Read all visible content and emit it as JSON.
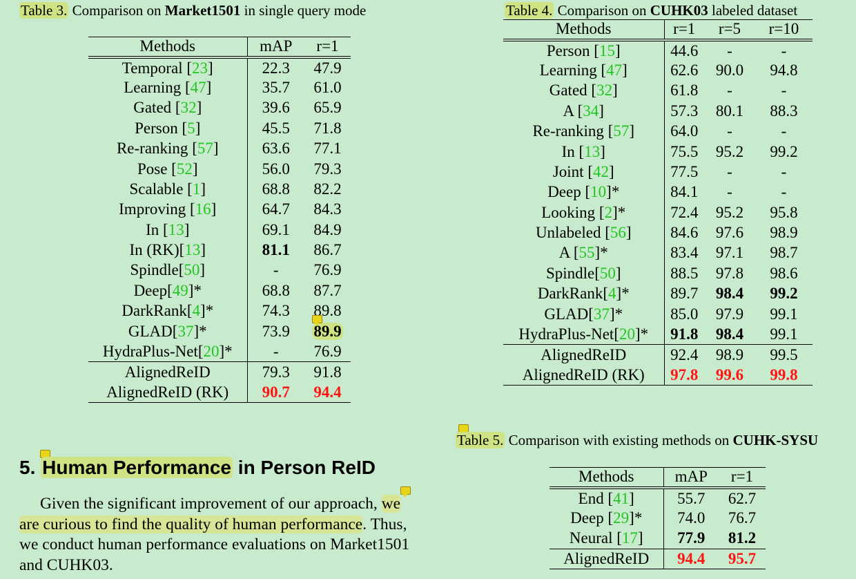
{
  "table3": {
    "caption_label": "Table 3.",
    "caption_text": " Comparison on ",
    "caption_bold": "Market1501",
    "caption_tail": " in single query mode",
    "headers": [
      "Methods",
      "mAP",
      "r=1"
    ],
    "rows": [
      [
        "Temporal",
        "23",
        "",
        "22.3",
        "47.9"
      ],
      [
        "Learning",
        "47",
        "",
        "35.7",
        "61.0"
      ],
      [
        "Gated",
        "32",
        "",
        "39.6",
        "65.9"
      ],
      [
        "Person",
        "5",
        "",
        "45.5",
        "71.8"
      ],
      [
        "Re-ranking",
        "57",
        "",
        "63.6",
        "77.1"
      ],
      [
        "Pose",
        "52",
        "",
        "56.0",
        "79.3"
      ],
      [
        "Scalable",
        "1",
        "",
        "68.8",
        "82.2"
      ],
      [
        "Improving",
        "16",
        "",
        "64.7",
        "84.3"
      ],
      [
        "In",
        "13",
        "",
        "69.1",
        "84.9"
      ],
      [
        "In (RK)",
        "13",
        "",
        "81.1",
        "86.7"
      ],
      [
        "Spindle",
        "50",
        "",
        "-",
        "76.9"
      ],
      [
        "Deep",
        "49",
        "*",
        "68.8",
        "87.7"
      ],
      [
        "DarkRank",
        "4",
        "*",
        "74.3",
        "89.8"
      ],
      [
        "GLAD",
        "37",
        "*",
        "73.9",
        "89.9"
      ],
      [
        "HydraPlus-Net",
        "20",
        "*",
        "-",
        "76.9"
      ]
    ],
    "ours": [
      [
        "AlignedReID",
        "79.3",
        "91.8"
      ],
      [
        "AlignedReID (RK)",
        "90.7",
        "94.4"
      ]
    ]
  },
  "table4": {
    "caption_label": "Table 4.",
    "caption_text": " Comparison on ",
    "caption_bold": "CUHK03",
    "caption_tail": " labeled dataset",
    "headers": [
      "Methods",
      "r=1",
      "r=5",
      "r=10"
    ],
    "rows": [
      [
        "Person",
        "15",
        "",
        "44.6",
        "-",
        "-"
      ],
      [
        "Learning",
        "47",
        "",
        "62.6",
        "90.0",
        "94.8"
      ],
      [
        "Gated",
        "32",
        "",
        "61.8",
        "-",
        "-"
      ],
      [
        "A",
        "34",
        "",
        "57.3",
        "80.1",
        "88.3"
      ],
      [
        "Re-ranking",
        "57",
        "",
        "64.0",
        "-",
        "-"
      ],
      [
        "In",
        "13",
        "",
        "75.5",
        "95.2",
        "99.2"
      ],
      [
        "Joint",
        "42",
        "",
        "77.5",
        "-",
        "-"
      ],
      [
        "Deep",
        "10",
        "*",
        "84.1",
        "-",
        "-"
      ],
      [
        "Looking",
        "2",
        "*",
        "72.4",
        "95.2",
        "95.8"
      ],
      [
        "Unlabeled",
        "56",
        "",
        "84.6",
        "97.6",
        "98.9"
      ],
      [
        "A",
        "55",
        "*",
        "83.4",
        "97.1",
        "98.7"
      ],
      [
        "Spindle",
        "50",
        "",
        "88.5",
        "97.8",
        "98.6"
      ],
      [
        "DarkRank",
        "4",
        "*",
        "89.7",
        "98.4",
        "99.2"
      ],
      [
        "GLAD",
        "37",
        "*",
        "85.0",
        "97.9",
        "99.1"
      ],
      [
        "HydraPlus-Net",
        "20",
        "*",
        "91.8",
        "98.4",
        "99.1"
      ]
    ],
    "ours": [
      [
        "AlignedReID",
        "92.4",
        "98.9",
        "99.5"
      ],
      [
        "AlignedReID (RK)",
        "97.8",
        "99.6",
        "99.8"
      ]
    ]
  },
  "table5": {
    "caption_label": "Table 5.",
    "caption_text": " Comparison with existing methods on ",
    "caption_bold": "CUHK-SYSU",
    "headers": [
      "Methods",
      "mAP",
      "r=1"
    ],
    "rows": [
      [
        "End",
        "41",
        "",
        "55.7",
        "62.7"
      ],
      [
        "Deep",
        "29",
        "*",
        "74.0",
        "76.7"
      ],
      [
        "Neural",
        "17",
        "",
        "77.9",
        "81.2"
      ]
    ],
    "ours": [
      [
        "AlignedReID",
        "94.4",
        "95.7"
      ]
    ]
  },
  "section": {
    "number": "5.",
    "title_highlight": "Human Performance",
    "title_rest": " in Person ReID",
    "para": [
      [
        "Given the significant improvement of our approach, ",
        "we"
      ],
      [
        "are curious to find the quality of human performance",
        ". Thus,"
      ],
      [
        "we conduct human performance evaluations on Market1501",
        ""
      ],
      [
        "and CUHK03.",
        ""
      ]
    ]
  },
  "colors": {
    "background": "#c8ebcd",
    "highlight": "#cfe384",
    "citation": "#22c422",
    "best": "#ff1414"
  }
}
